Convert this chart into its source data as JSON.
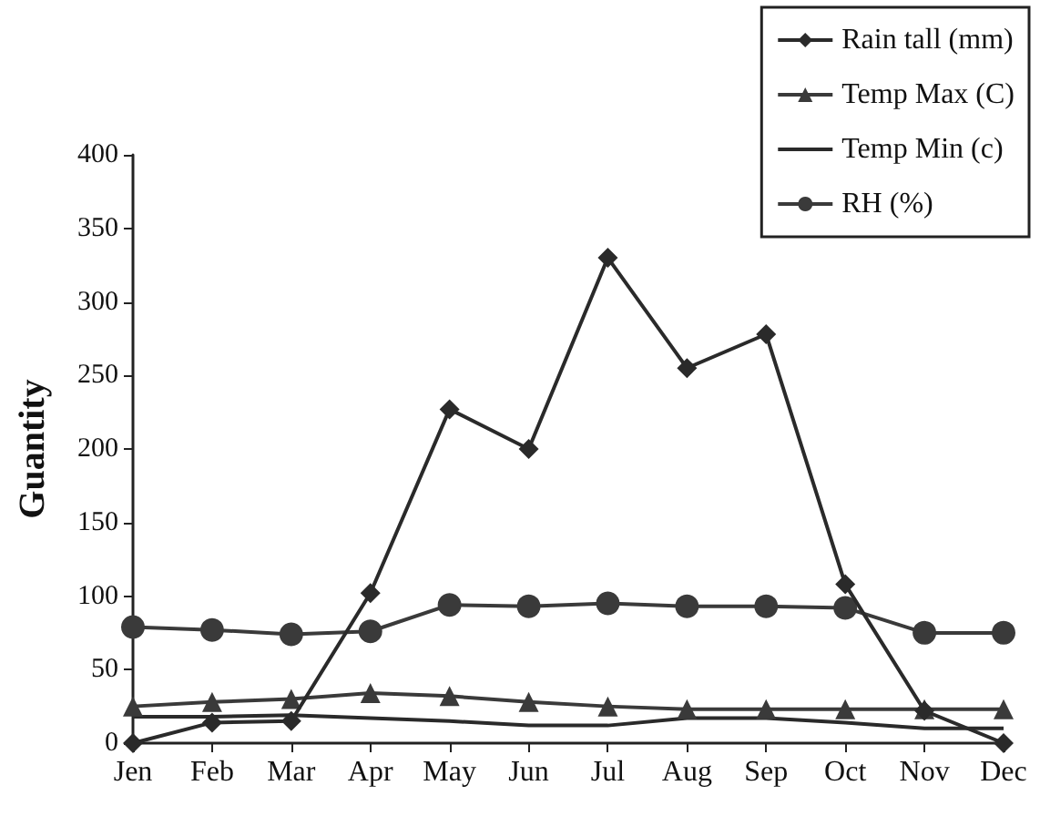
{
  "chart_data": {
    "type": "line",
    "ylabel": "Guantity",
    "categories": [
      "Jen",
      "Feb",
      "Mar",
      "Apr",
      "May",
      "Jun",
      "Jul",
      "Aug",
      "Sep",
      "Oct",
      "Nov",
      "Dec"
    ],
    "series": [
      {
        "name": "Rain tall (mm)",
        "color": "#2a2a2a",
        "marker": "diamond",
        "values": [
          0,
          14,
          15,
          102,
          227,
          200,
          330,
          255,
          278,
          108,
          22,
          0
        ]
      },
      {
        "name": "Temp Max (C)",
        "color": "#3a3a3a",
        "marker": "triangle",
        "values": [
          25,
          28,
          30,
          34,
          32,
          28,
          25,
          23,
          23,
          23,
          23,
          23
        ]
      },
      {
        "name": "Temp Min (c)",
        "color": "#2a2a2a",
        "marker": "none",
        "values": [
          18,
          18,
          19,
          17,
          15,
          12,
          12,
          17,
          17,
          14,
          10,
          10
        ]
      },
      {
        "name": "RH (%)",
        "color": "#3a3a3a",
        "marker": "circle",
        "values": [
          79,
          77,
          74,
          76,
          94,
          93,
          95,
          93,
          93,
          92,
          75,
          75
        ]
      }
    ],
    "ylim": [
      0,
      400
    ],
    "yticks": [
      0,
      50,
      100,
      150,
      200,
      250,
      300,
      350,
      400
    ],
    "grid": false,
    "legend": "top right"
  }
}
